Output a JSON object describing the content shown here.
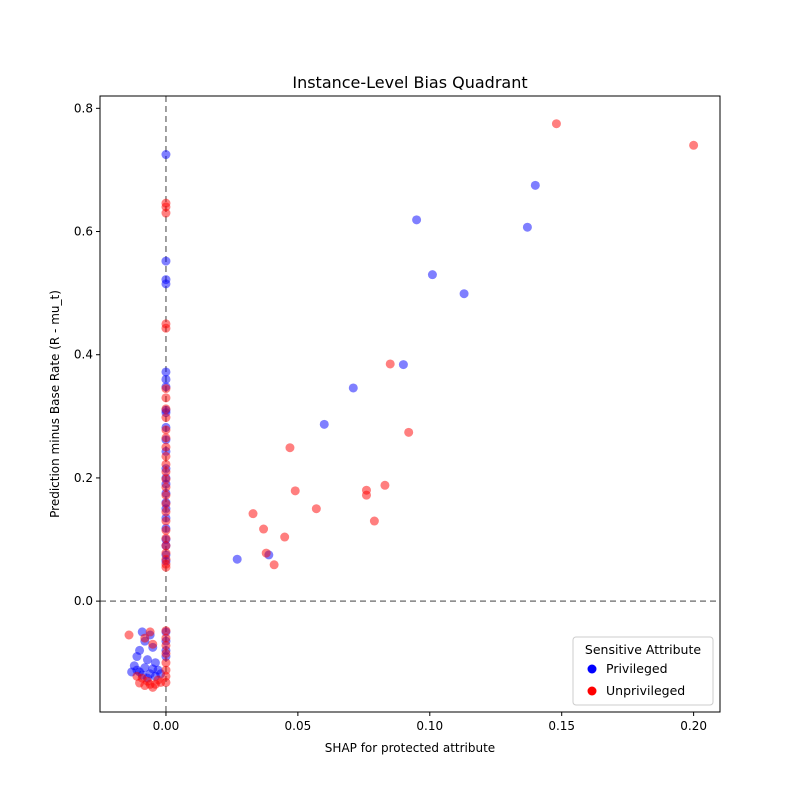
{
  "chart_data": {
    "type": "scatter",
    "title": "Instance-Level Bias Quadrant",
    "xlabel": "SHAP for protected attribute",
    "ylabel": "Prediction minus Base Rate (R - mu_t)",
    "xlim": [
      -0.025,
      0.21
    ],
    "ylim": [
      -0.18,
      0.82
    ],
    "xticks": [
      0.0,
      0.05,
      0.1,
      0.15,
      0.2
    ],
    "xtick_labels": [
      "0.00",
      "0.05",
      "0.10",
      "0.15",
      "0.20"
    ],
    "yticks": [
      0.0,
      0.2,
      0.4,
      0.6,
      0.8
    ],
    "ytick_labels": [
      "0.0",
      "0.2",
      "0.4",
      "0.6",
      "0.8"
    ],
    "reference_lines": [
      {
        "axis": "x",
        "value": 0.0,
        "style": "dashed",
        "color": "#808080"
      },
      {
        "axis": "y",
        "value": 0.0,
        "style": "dashed",
        "color": "#808080"
      }
    ],
    "grid": false,
    "legend": {
      "title": "Sensitive Attribute",
      "placement": "lower-right",
      "entries": [
        {
          "name": "Privileged",
          "color": "#0000ff"
        },
        {
          "name": "Unprivileged",
          "color": "#ff0000"
        }
      ]
    },
    "series": [
      {
        "name": "Privileged",
        "color": "#0000ff",
        "alpha": 0.5,
        "points": [
          [
            0.0,
            0.725
          ],
          [
            0.0,
            0.552
          ],
          [
            0.0,
            0.522
          ],
          [
            0.0,
            0.515
          ],
          [
            0.0,
            0.372
          ],
          [
            0.0,
            0.36
          ],
          [
            0.0,
            0.348
          ],
          [
            0.0,
            0.31
          ],
          [
            0.0,
            0.306
          ],
          [
            0.0,
            0.282
          ],
          [
            0.0,
            0.262
          ],
          [
            0.0,
            0.243
          ],
          [
            0.0,
            0.215
          ],
          [
            0.0,
            0.2
          ],
          [
            0.0,
            0.19
          ],
          [
            0.0,
            0.175
          ],
          [
            0.0,
            0.16
          ],
          [
            0.0,
            0.15
          ],
          [
            0.0,
            0.135
          ],
          [
            0.0,
            0.118
          ],
          [
            0.0,
            0.1
          ],
          [
            0.0,
            0.09
          ],
          [
            0.0,
            0.075
          ],
          [
            0.0,
            0.065
          ],
          [
            0.0,
            -0.05
          ],
          [
            0.0,
            -0.065
          ],
          [
            0.0,
            -0.08
          ],
          [
            0.0,
            -0.09
          ],
          [
            0.027,
            0.068
          ],
          [
            0.039,
            0.075
          ],
          [
            0.06,
            0.287
          ],
          [
            0.071,
            0.346
          ],
          [
            0.09,
            0.384
          ],
          [
            0.095,
            0.619
          ],
          [
            0.101,
            0.53
          ],
          [
            0.113,
            0.499
          ],
          [
            0.137,
            0.607
          ],
          [
            0.14,
            0.675
          ],
          [
            -0.009,
            -0.05
          ],
          [
            -0.006,
            -0.055
          ],
          [
            -0.008,
            -0.065
          ],
          [
            -0.01,
            -0.08
          ],
          [
            -0.005,
            -0.075
          ],
          [
            -0.011,
            -0.09
          ],
          [
            -0.007,
            -0.095
          ],
          [
            -0.004,
            -0.1
          ],
          [
            -0.012,
            -0.105
          ],
          [
            -0.008,
            -0.108
          ],
          [
            -0.005,
            -0.11
          ],
          [
            -0.003,
            -0.112
          ],
          [
            -0.01,
            -0.115
          ],
          [
            -0.006,
            -0.118
          ],
          [
            -0.009,
            -0.12
          ],
          [
            -0.004,
            -0.122
          ],
          [
            -0.007,
            -0.125
          ],
          [
            -0.011,
            -0.112
          ],
          [
            -0.013,
            -0.115
          ],
          [
            -0.002,
            -0.118
          ]
        ]
      },
      {
        "name": "Unprivileged",
        "color": "#ff0000",
        "alpha": 0.5,
        "points": [
          [
            0.0,
            0.646
          ],
          [
            0.0,
            0.64
          ],
          [
            0.0,
            0.63
          ],
          [
            0.0,
            0.45
          ],
          [
            0.0,
            0.443
          ],
          [
            0.0,
            0.345
          ],
          [
            0.0,
            0.33
          ],
          [
            0.0,
            0.312
          ],
          [
            0.0,
            0.298
          ],
          [
            0.0,
            0.278
          ],
          [
            0.0,
            0.265
          ],
          [
            0.0,
            0.25
          ],
          [
            0.0,
            0.235
          ],
          [
            0.0,
            0.222
          ],
          [
            0.0,
            0.21
          ],
          [
            0.0,
            0.198
          ],
          [
            0.0,
            0.185
          ],
          [
            0.0,
            0.172
          ],
          [
            0.0,
            0.158
          ],
          [
            0.0,
            0.145
          ],
          [
            0.0,
            0.13
          ],
          [
            0.0,
            0.115
          ],
          [
            0.0,
            0.102
          ],
          [
            0.0,
            0.09
          ],
          [
            0.0,
            0.078
          ],
          [
            0.0,
            0.068
          ],
          [
            0.0,
            0.06
          ],
          [
            0.0,
            0.055
          ],
          [
            0.0,
            -0.048
          ],
          [
            0.0,
            -0.06
          ],
          [
            0.0,
            -0.072
          ],
          [
            0.0,
            -0.085
          ],
          [
            0.0,
            -0.1
          ],
          [
            0.0,
            -0.112
          ],
          [
            0.0,
            -0.122
          ],
          [
            0.0,
            -0.132
          ],
          [
            0.033,
            0.142
          ],
          [
            0.037,
            0.117
          ],
          [
            0.038,
            0.078
          ],
          [
            0.041,
            0.059
          ],
          [
            0.045,
            0.104
          ],
          [
            0.047,
            0.249
          ],
          [
            0.049,
            0.179
          ],
          [
            0.057,
            0.15
          ],
          [
            0.076,
            0.172
          ],
          [
            0.076,
            0.18
          ],
          [
            0.079,
            0.13
          ],
          [
            0.083,
            0.188
          ],
          [
            0.085,
            0.385
          ],
          [
            0.092,
            0.274
          ],
          [
            0.148,
            0.775
          ],
          [
            0.2,
            0.74
          ],
          [
            -0.014,
            -0.055
          ],
          [
            -0.006,
            -0.05
          ],
          [
            -0.008,
            -0.06
          ],
          [
            -0.005,
            -0.07
          ],
          [
            -0.009,
            -0.125
          ],
          [
            -0.007,
            -0.13
          ],
          [
            -0.01,
            -0.133
          ],
          [
            -0.006,
            -0.135
          ],
          [
            -0.004,
            -0.135
          ],
          [
            -0.008,
            -0.137
          ],
          [
            -0.003,
            -0.128
          ],
          [
            -0.011,
            -0.122
          ],
          [
            -0.005,
            -0.14
          ],
          [
            -0.002,
            -0.132
          ]
        ]
      }
    ]
  }
}
